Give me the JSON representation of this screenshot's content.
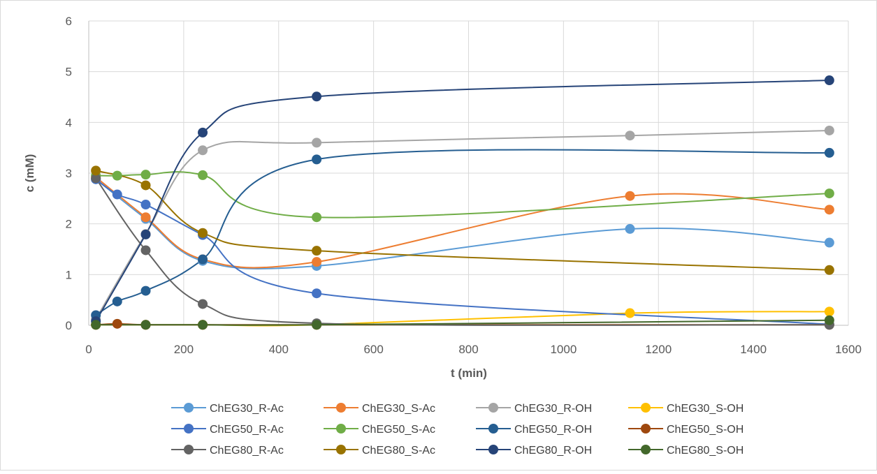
{
  "chart_data": {
    "type": "scatter",
    "title": "",
    "xlabel": "t (min)",
    "ylabel": "c (mM)",
    "xlim": [
      0,
      1600
    ],
    "ylim": [
      0,
      6
    ],
    "xticks": [
      0,
      200,
      400,
      600,
      800,
      1000,
      1200,
      1400,
      1600
    ],
    "yticks": [
      0,
      1,
      2,
      3,
      4,
      5,
      6
    ],
    "grid": true,
    "legend": "bottom",
    "series": [
      {
        "name": "ChEG30_R-Ac",
        "color": "#5b9bd5",
        "points": [
          [
            15,
            2.88
          ],
          [
            120,
            2.1
          ],
          [
            240,
            1.27
          ],
          [
            480,
            1.17
          ],
          [
            1140,
            1.9
          ],
          [
            1560,
            1.63
          ]
        ]
      },
      {
        "name": "ChEG30_S-Ac",
        "color": "#ed7d31",
        "points": [
          [
            15,
            2.92
          ],
          [
            120,
            2.13
          ],
          [
            240,
            1.3
          ],
          [
            480,
            1.25
          ],
          [
            1140,
            2.55
          ],
          [
            1560,
            2.28
          ]
        ]
      },
      {
        "name": "ChEG30_R-OH",
        "color": "#a5a5a5",
        "points": [
          [
            15,
            0.12
          ],
          [
            120,
            1.8
          ],
          [
            240,
            3.45
          ],
          [
            480,
            3.6
          ],
          [
            1140,
            3.74
          ],
          [
            1560,
            3.84
          ]
        ]
      },
      {
        "name": "ChEG30_S-OH",
        "color": "#ffc000",
        "points": [
          [
            15,
            0.01
          ],
          [
            120,
            0.01
          ],
          [
            240,
            0.01
          ],
          [
            480,
            0.01
          ],
          [
            1140,
            0.24
          ],
          [
            1560,
            0.27
          ]
        ]
      },
      {
        "name": "ChEG50_R-Ac",
        "color": "#4472c4",
        "points": [
          [
            15,
            2.88
          ],
          [
            60,
            2.58
          ],
          [
            120,
            2.38
          ],
          [
            240,
            1.78
          ],
          [
            480,
            0.63
          ],
          [
            1560,
            0.02
          ]
        ]
      },
      {
        "name": "ChEG50_S-Ac",
        "color": "#70ad47",
        "points": [
          [
            15,
            2.95
          ],
          [
            60,
            2.95
          ],
          [
            120,
            2.97
          ],
          [
            240,
            2.96
          ],
          [
            480,
            2.13
          ],
          [
            1560,
            2.6
          ]
        ]
      },
      {
        "name": "ChEG50_R-OH",
        "color": "#255e91",
        "points": [
          [
            15,
            0.2
          ],
          [
            60,
            0.47
          ],
          [
            120,
            0.68
          ],
          [
            240,
            1.3
          ],
          [
            480,
            3.27
          ],
          [
            1560,
            3.4
          ]
        ]
      },
      {
        "name": "ChEG50_S-OH",
        "color": "#9e480e",
        "points": [
          [
            15,
            0.01
          ],
          [
            60,
            0.03
          ],
          [
            120,
            0.01
          ],
          [
            240,
            0.01
          ],
          [
            480,
            0.01
          ],
          [
            1560,
            0.01
          ]
        ]
      },
      {
        "name": "ChEG80_R-Ac",
        "color": "#636363",
        "points": [
          [
            15,
            2.9
          ],
          [
            120,
            1.48
          ],
          [
            240,
            0.42
          ],
          [
            480,
            0.04
          ],
          [
            1560,
            0.01
          ]
        ]
      },
      {
        "name": "ChEG80_S-Ac",
        "color": "#997300",
        "points": [
          [
            15,
            3.05
          ],
          [
            120,
            2.76
          ],
          [
            240,
            1.82
          ],
          [
            480,
            1.47
          ],
          [
            1560,
            1.09
          ]
        ]
      },
      {
        "name": "ChEG80_R-OH",
        "color": "#264478",
        "points": [
          [
            15,
            0.08
          ],
          [
            120,
            1.79
          ],
          [
            240,
            3.8
          ],
          [
            480,
            4.51
          ],
          [
            1560,
            4.83
          ]
        ]
      },
      {
        "name": "ChEG80_S-OH",
        "color": "#43682b",
        "points": [
          [
            15,
            0.01
          ],
          [
            120,
            0.01
          ],
          [
            240,
            0.01
          ],
          [
            480,
            0.01
          ],
          [
            1560,
            0.1
          ]
        ]
      }
    ]
  }
}
